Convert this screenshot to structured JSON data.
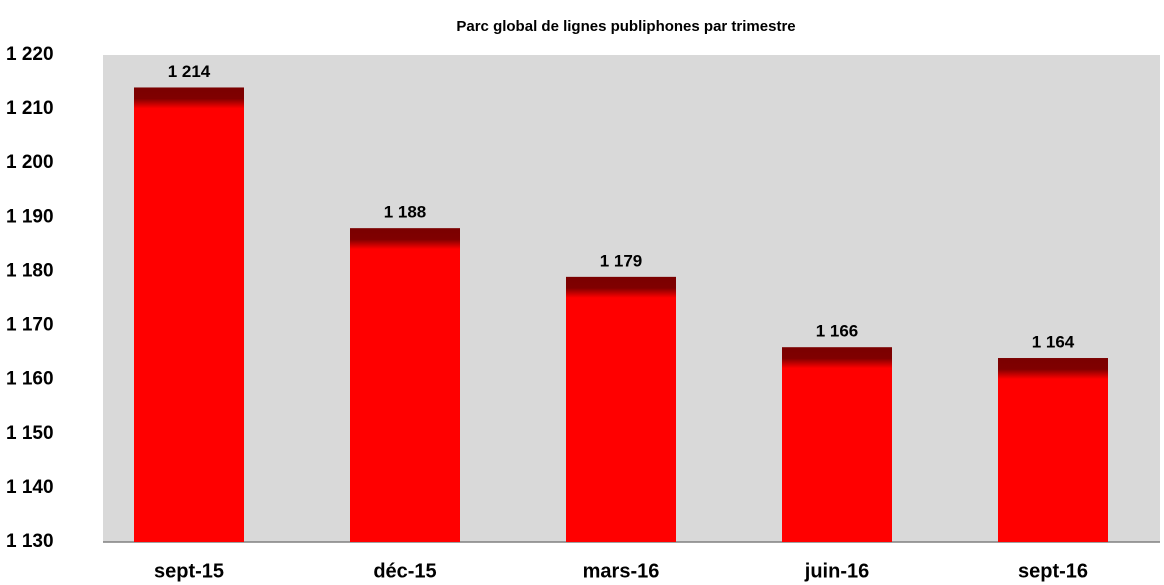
{
  "chart_data": {
    "type": "bar",
    "title": "Parc global  de lignes publiphones par trimestre",
    "categories": [
      "sept-15",
      "déc-15",
      "mars-16",
      "juin-16",
      "sept-16"
    ],
    "values": [
      1214,
      1188,
      1179,
      1166,
      1164
    ],
    "value_labels": [
      "1 214",
      "1 188",
      "1 179",
      "1 166",
      "1 164"
    ],
    "color": "#ff0000",
    "ylim": [
      1130,
      1220
    ],
    "yticks": [
      {
        "value": 1130,
        "label": "1 130"
      },
      {
        "value": 1140,
        "label": "1 140"
      },
      {
        "value": 1150,
        "label": "1 150"
      },
      {
        "value": 1160,
        "label": "1 160"
      },
      {
        "value": 1170,
        "label": "1 170"
      },
      {
        "value": 1180,
        "label": "1 180"
      },
      {
        "value": 1190,
        "label": "1 190"
      },
      {
        "value": 1200,
        "label": "1 200"
      },
      {
        "value": 1210,
        "label": "1 210"
      },
      {
        "value": 1220,
        "label": "1 220"
      }
    ],
    "grid": false
  }
}
